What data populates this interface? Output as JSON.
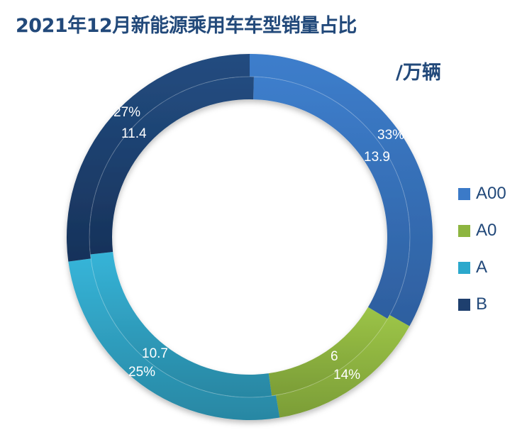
{
  "title": "2021年12月新能源乘用车车型销量占比",
  "unit": "/万辆",
  "chart_data": {
    "type": "pie",
    "subtype": "doughnut",
    "title": "2021年12月新能源乘用车车型销量占比",
    "unit": "/万辆",
    "categories": [
      "A00",
      "A0",
      "A",
      "B"
    ],
    "values": [
      13.9,
      6,
      10.7,
      11.4
    ],
    "percentages": [
      "33%",
      "14%",
      "25%",
      "27%"
    ],
    "colors": [
      "#3b7ac8",
      "#8db540",
      "#33afd3",
      "#1e3f6e"
    ],
    "legend_position": "right",
    "start_angle_deg": 0,
    "direction": "clockwise"
  },
  "legend": [
    {
      "label": "A00",
      "color": "#3b7ac8"
    },
    {
      "label": "A0",
      "color": "#8db540"
    },
    {
      "label": "A",
      "color": "#2ba8cc"
    },
    {
      "label": "B",
      "color": "#1e3f6e"
    }
  ],
  "labels": {
    "a00_pct": "33%",
    "a00_val": "13.9",
    "a0_val": "6",
    "a0_pct": "14%",
    "a_val": "10.7",
    "a_pct": "25%",
    "b_pct": "27%",
    "b_val": "11.4"
  }
}
